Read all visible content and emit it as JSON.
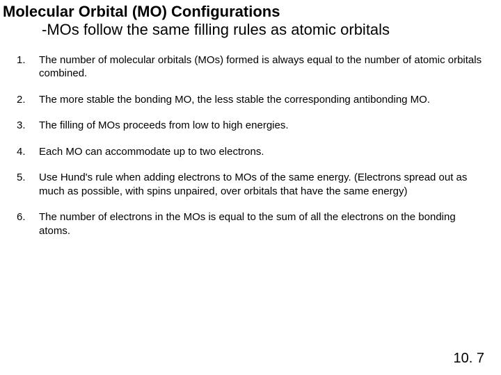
{
  "title": "Molecular Orbital (MO) Configurations",
  "subtitle": "-MOs follow the same filling rules as atomic orbitals",
  "rules": [
    {
      "num": "1.",
      "text": "The number of molecular orbitals (MOs) formed is always equal to the number of atomic orbitals combined."
    },
    {
      "num": "2.",
      "text": "The more stable the bonding MO, the less stable the corresponding antibonding MO."
    },
    {
      "num": "3.",
      "text": "The filling of MOs proceeds from low to high energies."
    },
    {
      "num": "4.",
      "text": "Each MO can accommodate up to two electrons."
    },
    {
      "num": "5.",
      "text": "Use Hund's rule when adding electrons to MOs of the same energy. (Electrons spread out as much as possible, with spins unpaired, over orbitals that have the same energy)"
    },
    {
      "num": "6.",
      "text": "The number of electrons in the MOs is equal to the sum of all the electrons on the bonding atoms."
    }
  ],
  "footer": "10. 7"
}
